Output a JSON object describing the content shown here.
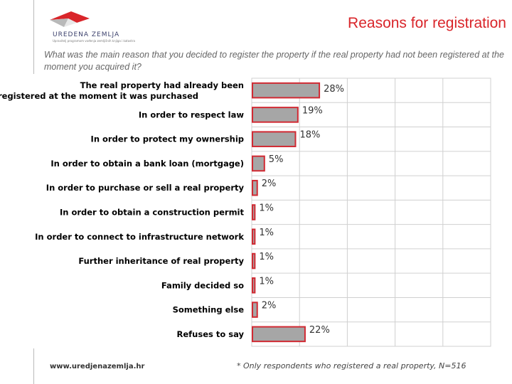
{
  "header": {
    "logo_name": "UREDENA ZEMLJA",
    "logo_subtitle": "Upravitelj programom vođenja zemljišnih knjiga i katastra",
    "title": "Reasons for registration"
  },
  "question": "What was the main reason that you decided to register the property if the real property had not been registered at the moment you acquired it?",
  "footer": {
    "url": "www.uredjenazemlja.hr",
    "note": "* Only respondents who registered a real property, N=516"
  },
  "colors": {
    "title": "#d9252a",
    "bar_fill": "#a6a6a6",
    "bar_border": "#d12a33",
    "grid": "#d0d0d0"
  },
  "chart_data": {
    "type": "bar",
    "orientation": "horizontal",
    "categories": [
      "The real property had already been registered at the moment it was purchased",
      "In order to respect law",
      "In order to protect my ownership",
      "In order to obtain a bank loan (mortgage)",
      "In order to purchase or sell a real property",
      "In order to obtain a construction permit",
      "In order to connect to infrastructure network",
      "Further inheritance of real property",
      "Family decided so",
      "Something else",
      "Refuses to say"
    ],
    "values": [
      28,
      19,
      18,
      5,
      2,
      1,
      1,
      1,
      1,
      2,
      22
    ],
    "value_labels": [
      "28%",
      "19%",
      "18%",
      "5%",
      "2%",
      "1%",
      "1%",
      "1%",
      "1%",
      "2%",
      "22%"
    ],
    "xlim": [
      0,
      100
    ],
    "grid": true
  }
}
